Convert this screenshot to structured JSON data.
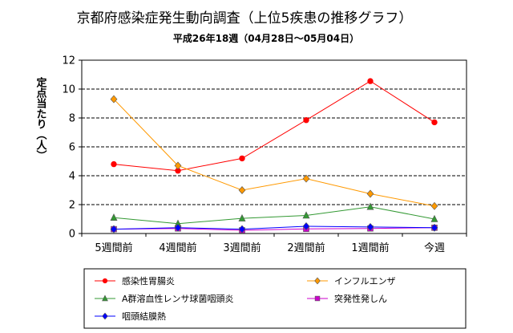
{
  "chart_data": {
    "type": "line",
    "title": "京都府感染症発生動向調査（上位5疾患の推移グラフ）",
    "subtitle": "平成26年18週（04月28日〜05月04日）",
    "ylabel": "定点当たり（人）",
    "xlabel": "",
    "ylim": [
      0,
      12
    ],
    "yticks": [
      "0",
      "2",
      "4",
      "6",
      "8",
      "10",
      "12"
    ],
    "grid": true,
    "legend_position": "bottom",
    "categories": [
      "5週間前",
      "4週間前",
      "3週間前",
      "2週間前",
      "1週間前",
      "今週"
    ],
    "series": [
      {
        "name": "感染性胃腸炎",
        "color": "#ff0000",
        "marker": "circle",
        "values": [
          4.8,
          4.35,
          5.2,
          7.85,
          10.55,
          7.7
        ]
      },
      {
        "name": "インフルエンザ",
        "color": "#ff9900",
        "marker": "diamond",
        "values": [
          9.3,
          4.7,
          3.0,
          3.8,
          2.75,
          1.9
        ]
      },
      {
        "name": "A群溶血性レンサ球菌咽頭炎",
        "color": "#339933",
        "marker": "triangle",
        "values": [
          1.1,
          0.68,
          1.05,
          1.25,
          1.85,
          1.0
        ]
      },
      {
        "name": "突発性発しん",
        "color": "#cc00cc",
        "marker": "square",
        "values": [
          0.3,
          0.35,
          0.22,
          0.32,
          0.35,
          0.4
        ]
      },
      {
        "name": "咽頭結膜熱",
        "color": "#0000ff",
        "marker": "diamond",
        "values": [
          0.3,
          0.4,
          0.3,
          0.5,
          0.45,
          0.4
        ]
      }
    ]
  }
}
